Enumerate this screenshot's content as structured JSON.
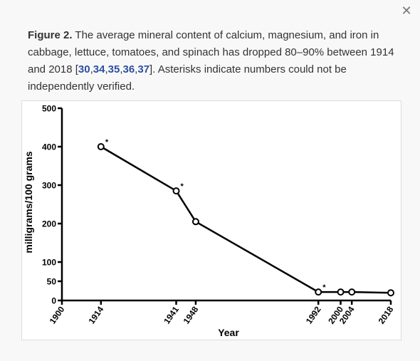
{
  "dialog": {
    "close_icon": "close-icon",
    "close_glyph": "✕"
  },
  "caption": {
    "label": "Figure 2.",
    "text_1": " The average mineral content of calcium, magnesium, and iron in cabbage, lettuce, tomatoes, and spinach has dropped 80–90% between 1914 and 2018 [",
    "refs": [
      "30",
      "34",
      "35",
      "36",
      "37"
    ],
    "text_2": "]. Asterisks indicate numbers could not be independently verified."
  },
  "chart_data": {
    "type": "line",
    "xlabel": "Year",
    "ylabel": "milligrams/100 grams",
    "xlim": [
      1900,
      2018
    ],
    "ylim": [
      0,
      500
    ],
    "x_ticks": [
      "1900",
      "1914",
      "1941",
      "1948",
      "1992",
      "2000",
      "2004",
      "2018"
    ],
    "y_ticks": [
      "0",
      "50",
      "100",
      "200",
      "300",
      "400",
      "500"
    ],
    "series": [
      {
        "x": [
          1914,
          1941,
          1948,
          1992,
          2000,
          2004,
          2018
        ],
        "values": [
          400,
          285,
          205,
          22,
          22,
          22,
          20
        ],
        "asterisk": [
          true,
          true,
          false,
          true,
          false,
          false,
          false
        ]
      }
    ],
    "annotation": "*",
    "line_color": "#000000"
  }
}
